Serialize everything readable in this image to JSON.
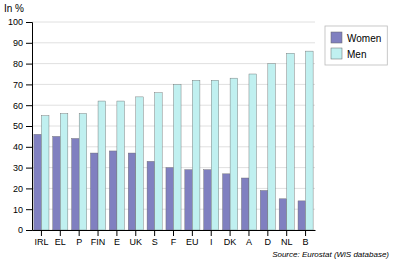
{
  "chart_data": {
    "type": "bar",
    "ylabel": "In %",
    "annotations": [
      "Source: Eurostat (WiS database)"
    ],
    "categories": [
      "IRL",
      "EL",
      "P",
      "FIN",
      "E",
      "UK",
      "S",
      "F",
      "EU",
      "I",
      "DK",
      "A",
      "D",
      "NL",
      "B"
    ],
    "series": [
      {
        "name": "Women",
        "color": "#8080c0",
        "values": [
          46,
          45,
          44,
          37,
          38,
          37,
          33,
          30,
          29,
          29,
          27,
          25,
          19,
          15,
          14
        ]
      },
      {
        "name": "Men",
        "color": "#c0f0f0",
        "values": [
          55,
          56,
          56,
          62,
          62,
          64,
          66,
          70,
          72,
          72,
          73,
          75,
          80,
          85,
          86
        ]
      }
    ],
    "ylim": [
      0,
      100
    ],
    "yticks": [
      0,
      10,
      20,
      30,
      40,
      50,
      60,
      70,
      80,
      90,
      100
    ],
    "grid": true,
    "legend": "right"
  }
}
